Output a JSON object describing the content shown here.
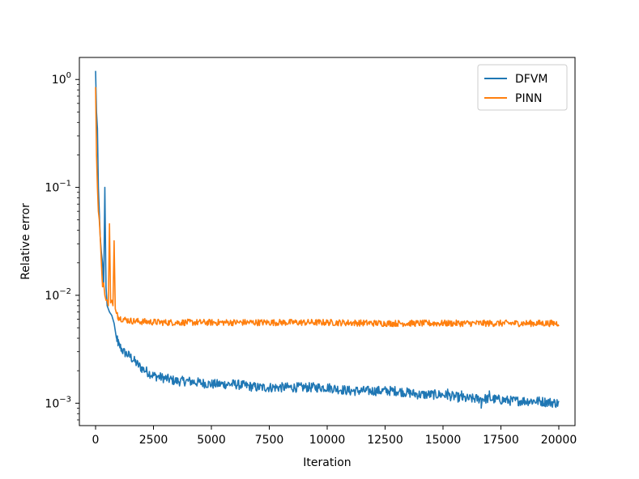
{
  "chart_data": {
    "type": "line",
    "title": "",
    "xlabel": "Iteration",
    "ylabel": "Relative error",
    "yscale": "log",
    "xlim": [
      -700,
      20700
    ],
    "ylim": [
      0.00062,
      1.6
    ],
    "grid": false,
    "legend_position": "top-right",
    "x_ticks": [
      0,
      2500,
      5000,
      7500,
      10000,
      12500,
      15000,
      17500,
      20000
    ],
    "x_tick_labels": [
      "0",
      "2500",
      "5000",
      "7500",
      "10000",
      "12500",
      "15000",
      "17500",
      "20000"
    ],
    "y_ticks": [
      0.001,
      0.01,
      0.1,
      1
    ],
    "y_tick_labels": [
      {
        "base": "10",
        "exp": "−3"
      },
      {
        "base": "10",
        "exp": "−2"
      },
      {
        "base": "10",
        "exp": "−1"
      },
      {
        "base": "10",
        "exp": "0"
      }
    ],
    "series": [
      {
        "name": "DFVM",
        "color": "#1f77b4",
        "x": [
          0,
          40,
          80,
          120,
          160,
          200,
          250,
          300,
          350,
          400,
          450,
          500,
          600,
          700,
          800,
          900,
          1000,
          1200,
          1500,
          1800,
          2000,
          2500,
          3000,
          3500,
          4000,
          5000,
          6000,
          7000,
          8000,
          9000,
          10000,
          11000,
          12000,
          13000,
          14000,
          15000,
          16000,
          17000,
          18000,
          19000,
          20000
        ],
        "y": [
          1.2,
          0.5,
          0.35,
          0.1,
          0.06,
          0.035,
          0.025,
          0.02,
          0.012,
          0.1,
          0.012,
          0.008,
          0.007,
          0.0065,
          0.0055,
          0.004,
          0.0035,
          0.003,
          0.0027,
          0.0023,
          0.0021,
          0.0018,
          0.0017,
          0.0016,
          0.0016,
          0.0015,
          0.0015,
          0.0014,
          0.0014,
          0.0014,
          0.0014,
          0.0013,
          0.0013,
          0.0013,
          0.0012,
          0.0012,
          0.0011,
          0.0011,
          0.00105,
          0.00105,
          0.001
        ],
        "noise": 0.045,
        "spikes": [
          [
            16650,
            0.0009
          ],
          [
            15800,
            0.0013
          ],
          [
            15200,
            0.00135
          ],
          [
            17000,
            0.0013
          ]
        ]
      },
      {
        "name": "PINN",
        "color": "#ff7f0e",
        "x": [
          0,
          40,
          80,
          120,
          160,
          200,
          250,
          300,
          350,
          400,
          450,
          500,
          550,
          600,
          650,
          700,
          750,
          800,
          850,
          900,
          1000,
          1200,
          1500,
          2000,
          3000,
          4000,
          5000,
          7500,
          10000,
          12500,
          15000,
          17500,
          20000
        ],
        "y": [
          0.85,
          0.2,
          0.1,
          0.06,
          0.05,
          0.035,
          0.02,
          0.012,
          0.013,
          0.01,
          0.009,
          0.009,
          0.008,
          0.046,
          0.0085,
          0.009,
          0.008,
          0.032,
          0.0075,
          0.0068,
          0.0062,
          0.006,
          0.0058,
          0.0057,
          0.0056,
          0.0056,
          0.0056,
          0.0056,
          0.0056,
          0.0055,
          0.0055,
          0.0055,
          0.0055
        ],
        "noise": 0.03,
        "spikes": []
      }
    ]
  }
}
